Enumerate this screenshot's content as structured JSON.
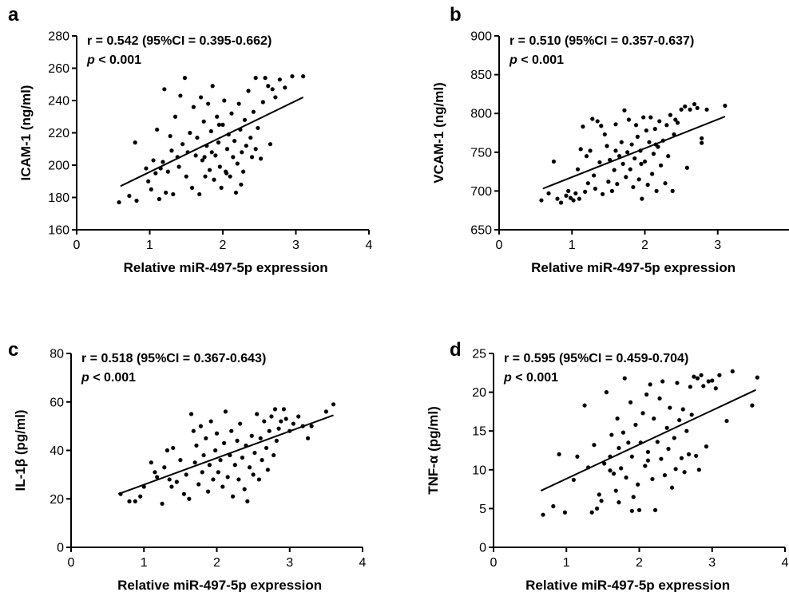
{
  "chart_data": [
    {
      "type": "scatter",
      "panel": "a",
      "xlabel": "Relative miR-497-5p expression",
      "ylabel": "ICAM-1 (ng/ml)",
      "xlim": [
        0,
        4
      ],
      "ylim": [
        160,
        280
      ],
      "xticks": [
        0,
        1,
        2,
        3,
        4
      ],
      "yticks": [
        160,
        180,
        200,
        220,
        240,
        260,
        280
      ],
      "annotation": {
        "r_line": "r = 0.542 (95%CI = 0.395-0.662)",
        "p_symbol": "p",
        "p_rest": " < 0.001"
      },
      "regression": {
        "x": [
          0.6,
          3.1
        ],
        "y": [
          187,
          242
        ]
      },
      "points": [
        [
          0.58,
          177
        ],
        [
          0.72,
          181
        ],
        [
          0.8,
          214
        ],
        [
          0.82,
          178
        ],
        [
          0.95,
          198
        ],
        [
          0.98,
          190
        ],
        [
          1.02,
          185
        ],
        [
          1.05,
          203
        ],
        [
          1.08,
          195
        ],
        [
          1.1,
          222
        ],
        [
          1.13,
          179
        ],
        [
          1.15,
          198
        ],
        [
          1.18,
          202
        ],
        [
          1.2,
          247
        ],
        [
          1.22,
          183
        ],
        [
          1.25,
          196
        ],
        [
          1.28,
          218
        ],
        [
          1.3,
          209
        ],
        [
          1.32,
          182
        ],
        [
          1.35,
          230
        ],
        [
          1.38,
          205
        ],
        [
          1.4,
          199
        ],
        [
          1.42,
          243
        ],
        [
          1.45,
          213
        ],
        [
          1.48,
          254
        ],
        [
          1.5,
          193
        ],
        [
          1.52,
          208
        ],
        [
          1.55,
          220
        ],
        [
          1.58,
          186
        ],
        [
          1.6,
          236
        ],
        [
          1.63,
          206
        ],
        [
          1.65,
          217
        ],
        [
          1.68,
          182
        ],
        [
          1.7,
          242
        ],
        [
          1.72,
          203
        ],
        [
          1.74,
          227
        ],
        [
          1.76,
          193
        ],
        [
          1.78,
          212
        ],
        [
          1.8,
          238
        ],
        [
          1.82,
          197
        ],
        [
          1.84,
          221
        ],
        [
          1.86,
          249
        ],
        [
          1.88,
          191
        ],
        [
          1.9,
          206
        ],
        [
          1.92,
          230
        ],
        [
          1.94,
          214
        ],
        [
          1.96,
          199
        ],
        [
          1.98,
          186
        ],
        [
          2.0,
          225
        ],
        [
          2.02,
          240
        ],
        [
          2.04,
          196
        ],
        [
          2.06,
          210
        ],
        [
          2.08,
          219
        ],
        [
          2.1,
          193
        ],
        [
          2.12,
          232
        ],
        [
          2.14,
          205
        ],
        [
          2.16,
          215
        ],
        [
          2.18,
          183
        ],
        [
          2.2,
          201
        ],
        [
          2.22,
          238
        ],
        [
          2.24,
          222
        ],
        [
          2.26,
          208
        ],
        [
          2.28,
          196
        ],
        [
          2.3,
          228
        ],
        [
          2.32,
          212
        ],
        [
          2.35,
          246
        ],
        [
          2.38,
          217
        ],
        [
          2.4,
          205
        ],
        [
          2.42,
          233
        ],
        [
          2.45,
          254
        ],
        [
          2.48,
          223
        ],
        [
          2.52,
          204
        ],
        [
          2.55,
          239
        ],
        [
          2.58,
          254
        ],
        [
          2.62,
          249
        ],
        [
          2.65,
          213
        ],
        [
          2.68,
          247
        ],
        [
          2.72,
          242
        ],
        [
          2.78,
          253
        ],
        [
          2.85,
          248
        ],
        [
          2.95,
          255
        ],
        [
          3.1,
          255
        ],
        [
          1.85,
          208
        ],
        [
          2.05,
          195
        ],
        [
          1.75,
          205
        ],
        [
          2.25,
          188
        ],
        [
          2.45,
          210
        ],
        [
          1.95,
          225
        ]
      ]
    },
    {
      "type": "scatter",
      "panel": "b",
      "xlabel": "Relative miR-497-5p expression",
      "ylabel": "VCAM-1 (ng/ml)",
      "xlim": [
        0,
        4
      ],
      "ylim": [
        650,
        900
      ],
      "xticks": [
        0,
        1,
        2,
        3
      ],
      "yticks": [
        650,
        700,
        750,
        800,
        850,
        900
      ],
      "annotation": {
        "r_line": "r = 0.510 (95%CI = 0.357-0.637)",
        "p_symbol": "p",
        "p_rest": " < 0.001"
      },
      "regression": {
        "x": [
          0.6,
          3.1
        ],
        "y": [
          703,
          796
        ]
      },
      "points": [
        [
          0.58,
          688
        ],
        [
          0.68,
          697
        ],
        [
          0.75,
          738
        ],
        [
          0.8,
          690
        ],
        [
          0.85,
          685
        ],
        [
          0.92,
          694
        ],
        [
          0.95,
          700
        ],
        [
          0.98,
          691
        ],
        [
          1.02,
          688
        ],
        [
          1.05,
          697
        ],
        [
          1.08,
          728
        ],
        [
          1.1,
          690
        ],
        [
          1.12,
          754
        ],
        [
          1.15,
          783
        ],
        [
          1.18,
          699
        ],
        [
          1.2,
          745
        ],
        [
          1.22,
          710
        ],
        [
          1.25,
          752
        ],
        [
          1.28,
          793
        ],
        [
          1.3,
          720
        ],
        [
          1.32,
          703
        ],
        [
          1.35,
          790
        ],
        [
          1.38,
          737
        ],
        [
          1.4,
          784
        ],
        [
          1.42,
          696
        ],
        [
          1.45,
          773
        ],
        [
          1.48,
          758
        ],
        [
          1.5,
          712
        ],
        [
          1.52,
          740
        ],
        [
          1.55,
          700
        ],
        [
          1.58,
          727
        ],
        [
          1.6,
          786
        ],
        [
          1.62,
          709
        ],
        [
          1.65,
          745
        ],
        [
          1.68,
          763
        ],
        [
          1.7,
          735
        ],
        [
          1.72,
          804
        ],
        [
          1.74,
          718
        ],
        [
          1.76,
          750
        ],
        [
          1.78,
          792
        ],
        [
          1.8,
          728
        ],
        [
          1.82,
          760
        ],
        [
          1.84,
          705
        ],
        [
          1.86,
          742
        ],
        [
          1.88,
          785
        ],
        [
          1.9,
          770
        ],
        [
          1.92,
          715
        ],
        [
          1.94,
          752
        ],
        [
          1.96,
          690
        ],
        [
          1.98,
          795
        ],
        [
          2.0,
          738
        ],
        [
          2.02,
          778
        ],
        [
          2.04,
          708
        ],
        [
          2.06,
          763
        ],
        [
          2.08,
          795
        ],
        [
          2.1,
          722
        ],
        [
          2.12,
          748
        ],
        [
          2.14,
          780
        ],
        [
          2.16,
          700
        ],
        [
          2.18,
          757
        ],
        [
          2.2,
          790
        ],
        [
          2.22,
          733
        ],
        [
          2.25,
          765
        ],
        [
          2.28,
          710
        ],
        [
          2.3,
          785
        ],
        [
          2.32,
          745
        ],
        [
          2.35,
          798
        ],
        [
          2.38,
          700
        ],
        [
          2.4,
          773
        ],
        [
          2.42,
          792
        ],
        [
          2.45,
          788
        ],
        [
          2.5,
          805
        ],
        [
          2.55,
          809
        ],
        [
          2.58,
          730
        ],
        [
          2.62,
          805
        ],
        [
          2.68,
          812
        ],
        [
          2.72,
          807
        ],
        [
          2.78,
          762
        ],
        [
          2.78,
          768
        ],
        [
          2.85,
          805
        ],
        [
          3.1,
          810
        ],
        [
          1.6,
          752
        ],
        [
          1.95,
          735
        ],
        [
          2.15,
          760
        ]
      ]
    },
    {
      "type": "scatter",
      "panel": "c",
      "xlabel": "Relative miR-497-5p expression",
      "ylabel": "IL-1β (pg/ml)",
      "xlim": [
        0,
        4
      ],
      "ylim": [
        0,
        80
      ],
      "xticks": [
        0,
        1,
        2,
        3,
        4
      ],
      "yticks": [
        0,
        20,
        40,
        60,
        80
      ],
      "annotation": {
        "r_line": "r = 0.518 (95%CI = 0.367-0.643)",
        "p_symbol": "p",
        "p_rest": " < 0.001"
      },
      "regression": {
        "x": [
          0.65,
          3.6
        ],
        "y": [
          22,
          54.5
        ]
      },
      "points": [
        [
          0.68,
          22
        ],
        [
          0.8,
          19
        ],
        [
          0.88,
          19
        ],
        [
          0.95,
          21
        ],
        [
          1.0,
          25
        ],
        [
          1.1,
          35
        ],
        [
          1.15,
          31
        ],
        [
          1.18,
          29
        ],
        [
          1.25,
          18
        ],
        [
          1.28,
          33
        ],
        [
          1.32,
          40
        ],
        [
          1.35,
          28
        ],
        [
          1.38,
          25
        ],
        [
          1.4,
          41
        ],
        [
          1.45,
          27
        ],
        [
          1.5,
          36
        ],
        [
          1.55,
          22
        ],
        [
          1.58,
          30
        ],
        [
          1.62,
          20
        ],
        [
          1.65,
          55
        ],
        [
          1.68,
          48
        ],
        [
          1.7,
          35
        ],
        [
          1.72,
          42
        ],
        [
          1.75,
          26
        ],
        [
          1.78,
          50
        ],
        [
          1.8,
          31
        ],
        [
          1.82,
          38
        ],
        [
          1.85,
          45
        ],
        [
          1.88,
          23
        ],
        [
          1.9,
          34
        ],
        [
          1.92,
          52
        ],
        [
          1.95,
          28
        ],
        [
          1.98,
          40
        ],
        [
          2.0,
          47
        ],
        [
          2.02,
          31
        ],
        [
          2.05,
          36
        ],
        [
          2.08,
          25
        ],
        [
          2.1,
          43
        ],
        [
          2.12,
          56
        ],
        [
          2.15,
          29
        ],
        [
          2.18,
          38
        ],
        [
          2.2,
          48
        ],
        [
          2.22,
          21
        ],
        [
          2.25,
          34
        ],
        [
          2.28,
          44
        ],
        [
          2.3,
          28
        ],
        [
          2.32,
          51
        ],
        [
          2.35,
          37
        ],
        [
          2.38,
          24
        ],
        [
          2.4,
          42
        ],
        [
          2.42,
          19
        ],
        [
          2.45,
          33
        ],
        [
          2.48,
          46
        ],
        [
          2.5,
          30
        ],
        [
          2.52,
          39
        ],
        [
          2.55,
          55
        ],
        [
          2.58,
          28
        ],
        [
          2.6,
          45
        ],
        [
          2.62,
          36
        ],
        [
          2.65,
          52
        ],
        [
          2.68,
          41
        ],
        [
          2.7,
          32
        ],
        [
          2.72,
          48
        ],
        [
          2.75,
          54
        ],
        [
          2.78,
          38
        ],
        [
          2.8,
          57
        ],
        [
          2.82,
          44
        ],
        [
          2.85,
          49
        ],
        [
          2.88,
          52
        ],
        [
          2.92,
          57
        ],
        [
          2.95,
          53
        ],
        [
          3.0,
          48
        ],
        [
          3.05,
          51
        ],
        [
          3.12,
          54
        ],
        [
          3.18,
          50
        ],
        [
          3.25,
          45
        ],
        [
          3.3,
          50
        ],
        [
          3.5,
          56
        ],
        [
          3.6,
          59
        ]
      ]
    },
    {
      "type": "scatter",
      "panel": "d",
      "xlabel": "Relative miR-497-5p expression",
      "ylabel": "TNF-α (pg/ml)",
      "xlim": [
        0,
        4
      ],
      "ylim": [
        0,
        25
      ],
      "xticks": [
        0,
        1,
        2,
        3,
        4
      ],
      "yticks": [
        0,
        5,
        10,
        15,
        20,
        25
      ],
      "annotation": {
        "r_line": "r = 0.595 (95%CI = 0.459-0.704)",
        "p_symbol": "p",
        "p_rest": " < 0.001"
      },
      "regression": {
        "x": [
          0.65,
          3.6
        ],
        "y": [
          7.3,
          20.3
        ]
      },
      "points": [
        [
          0.68,
          4.2
        ],
        [
          0.82,
          5.3
        ],
        [
          0.9,
          12.0
        ],
        [
          0.98,
          4.5
        ],
        [
          1.1,
          8.7
        ],
        [
          1.15,
          11.7
        ],
        [
          1.25,
          18.3
        ],
        [
          1.3,
          10.3
        ],
        [
          1.35,
          4.5
        ],
        [
          1.38,
          13.2
        ],
        [
          1.42,
          5.0
        ],
        [
          1.45,
          6.8
        ],
        [
          1.48,
          6.0
        ],
        [
          1.52,
          10.8
        ],
        [
          1.55,
          20.0
        ],
        [
          1.6,
          11.7
        ],
        [
          1.62,
          14.5
        ],
        [
          1.65,
          9.5
        ],
        [
          1.68,
          7.3
        ],
        [
          1.7,
          16.6
        ],
        [
          1.72,
          12.8
        ],
        [
          1.75,
          10.2
        ],
        [
          1.78,
          14.8
        ],
        [
          1.8,
          21.8
        ],
        [
          1.82,
          9.0
        ],
        [
          1.85,
          13.5
        ],
        [
          1.88,
          18.7
        ],
        [
          1.9,
          11.7
        ],
        [
          1.92,
          6.5
        ],
        [
          1.95,
          15.8
        ],
        [
          1.98,
          8.1
        ],
        [
          2.0,
          4.8
        ],
        [
          2.02,
          13.5
        ],
        [
          2.05,
          17.3
        ],
        [
          2.08,
          10.5
        ],
        [
          2.1,
          19.7
        ],
        [
          2.12,
          12.3
        ],
        [
          2.15,
          21.0
        ],
        [
          2.18,
          8.8
        ],
        [
          2.2,
          16.6
        ],
        [
          2.22,
          4.8
        ],
        [
          2.25,
          13.6
        ],
        [
          2.28,
          19.2
        ],
        [
          2.3,
          11.4
        ],
        [
          2.32,
          21.4
        ],
        [
          2.35,
          9.3
        ],
        [
          2.38,
          15.4
        ],
        [
          2.4,
          12.7
        ],
        [
          2.42,
          18.0
        ],
        [
          2.45,
          7.7
        ],
        [
          2.48,
          14.1
        ],
        [
          2.5,
          10.1
        ],
        [
          2.52,
          21.2
        ],
        [
          2.55,
          16.4
        ],
        [
          2.58,
          11.5
        ],
        [
          2.6,
          17.8
        ],
        [
          2.62,
          9.7
        ],
        [
          2.65,
          15.0
        ],
        [
          2.68,
          12.0
        ],
        [
          2.7,
          20.7
        ],
        [
          2.72,
          17.1
        ],
        [
          2.75,
          22.0
        ],
        [
          2.78,
          11.8
        ],
        [
          2.8,
          21.8
        ],
        [
          2.82,
          10.0
        ],
        [
          2.85,
          22.2
        ],
        [
          2.88,
          20.8
        ],
        [
          2.92,
          13.0
        ],
        [
          2.95,
          21.4
        ],
        [
          3.0,
          21.5
        ],
        [
          3.05,
          20.5
        ],
        [
          3.1,
          22.2
        ],
        [
          3.2,
          16.3
        ],
        [
          3.28,
          22.7
        ],
        [
          3.55,
          18.3
        ],
        [
          3.62,
          21.9
        ],
        [
          1.6,
          9.9
        ],
        [
          1.72,
          5.8
        ],
        [
          1.9,
          4.7
        ],
        [
          2.12,
          11.2
        ]
      ]
    }
  ]
}
